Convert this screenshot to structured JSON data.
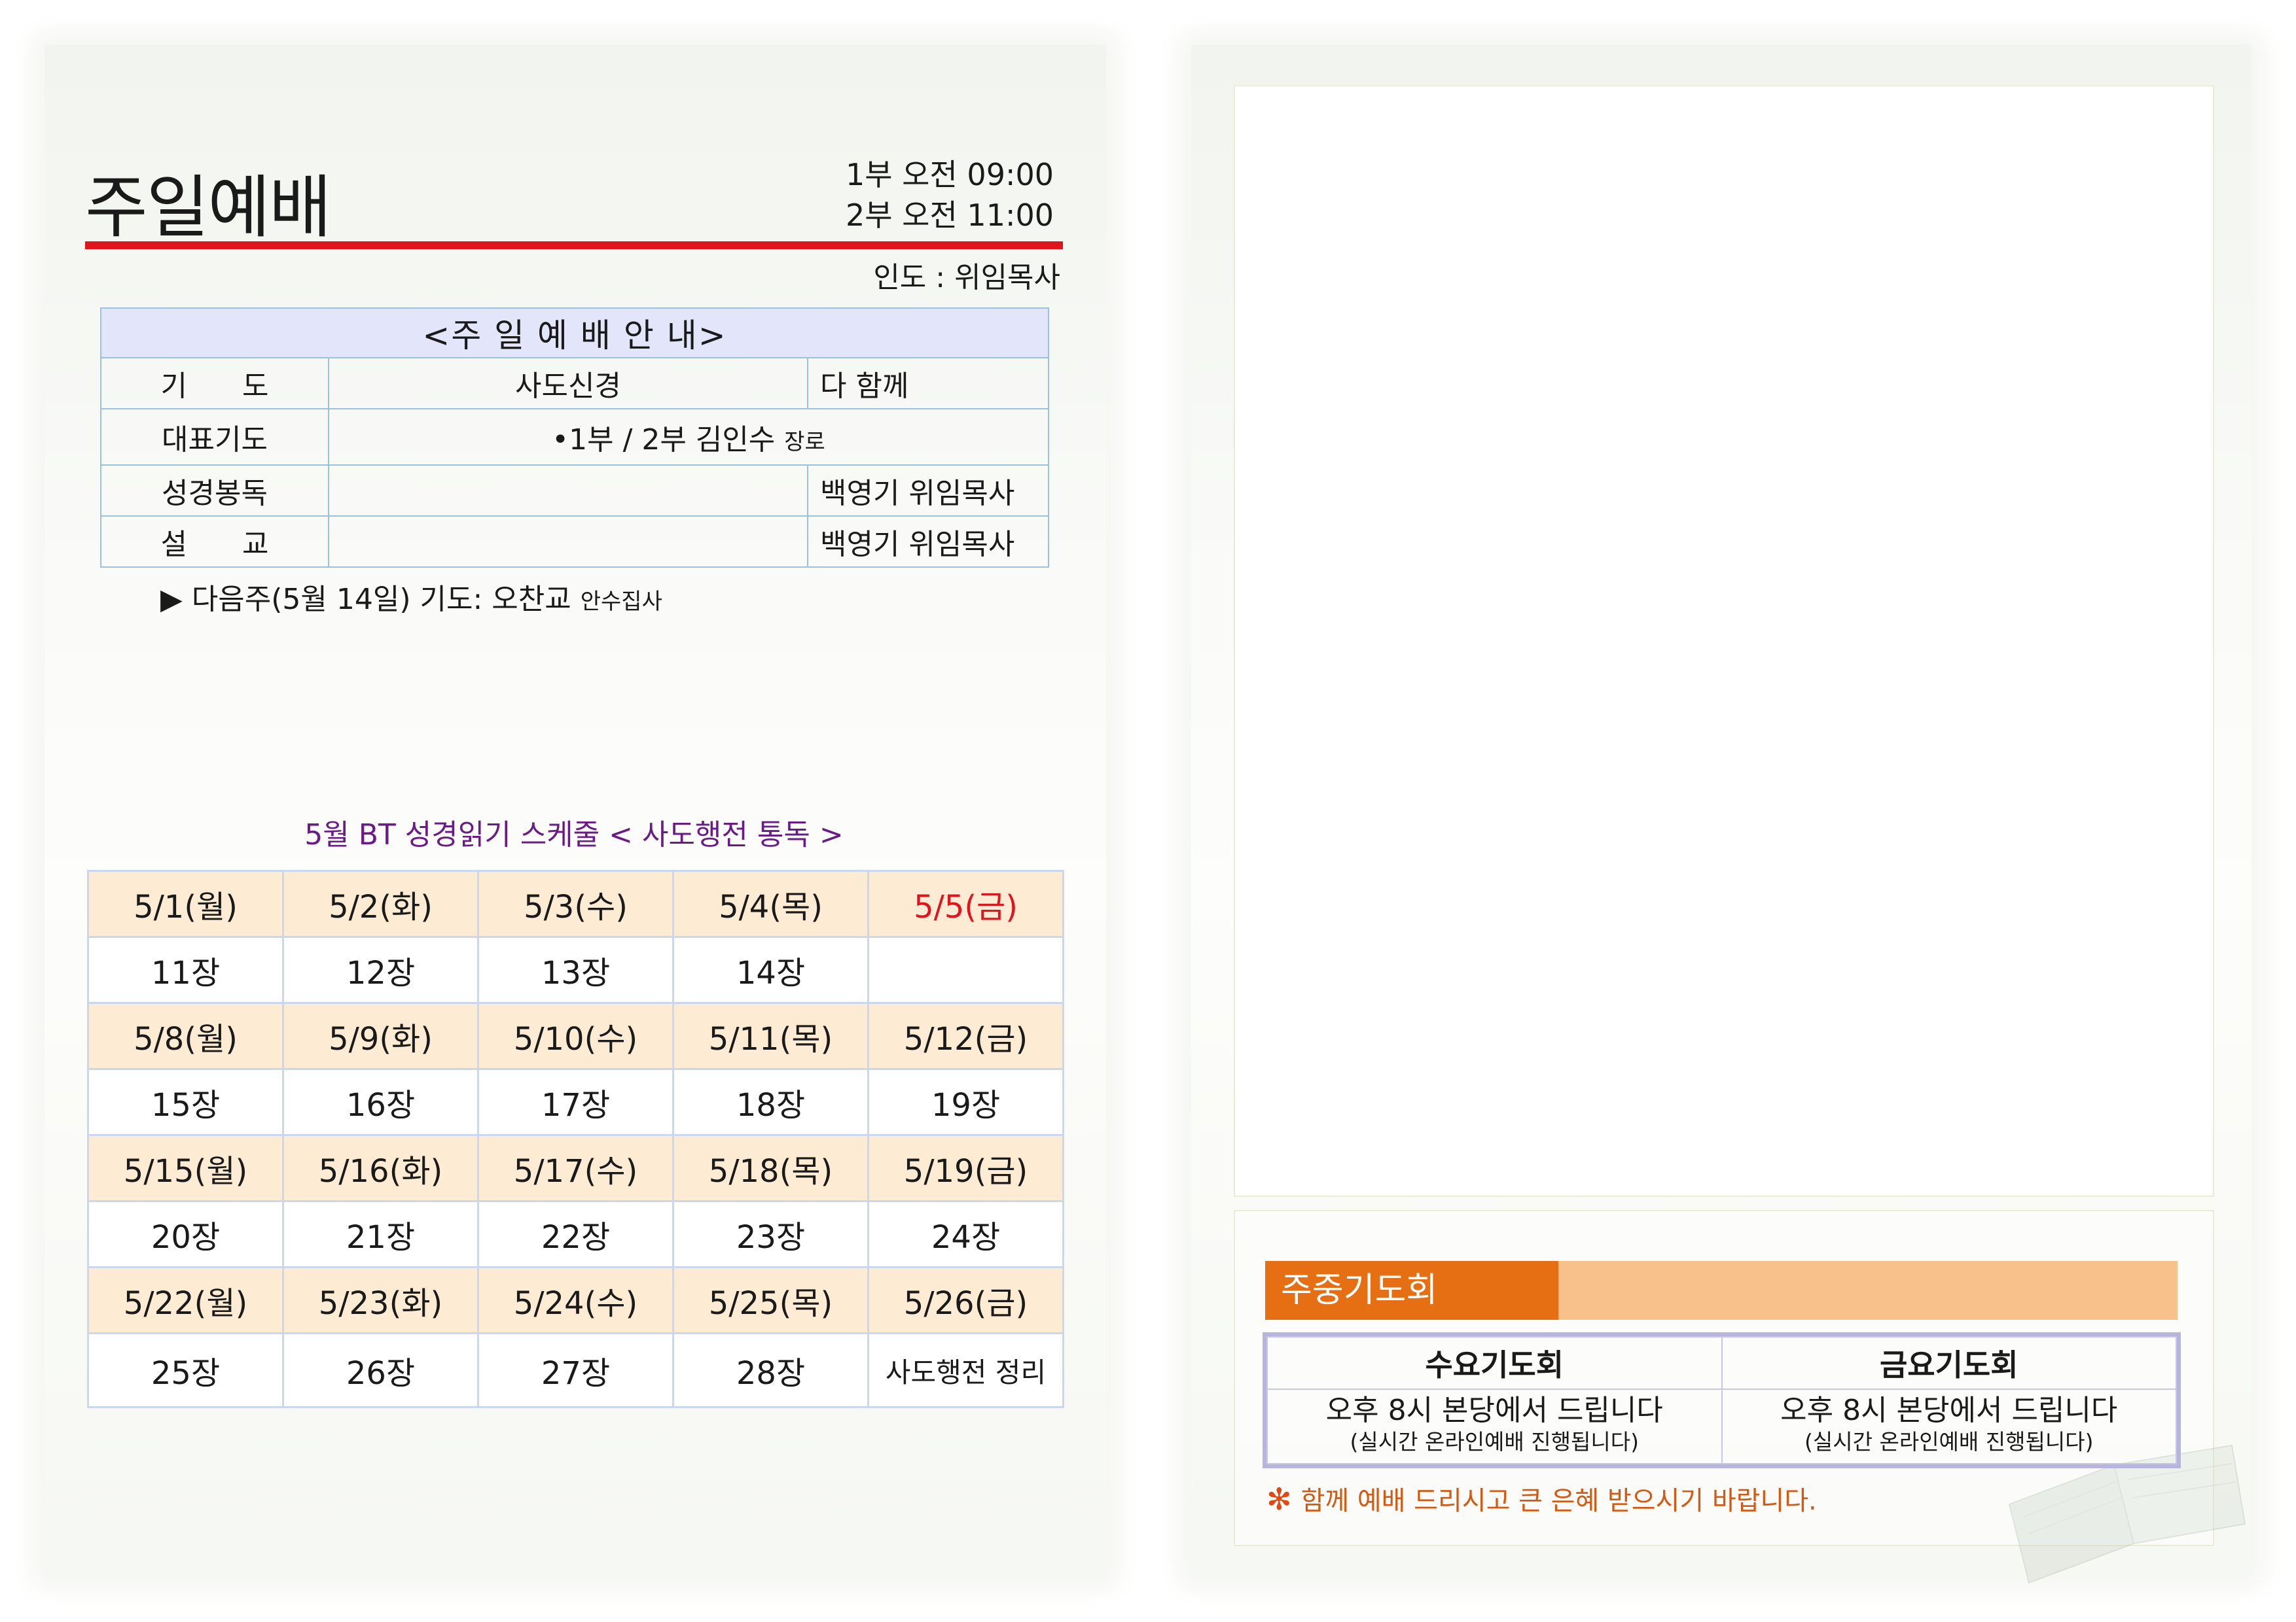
{
  "header": {
    "title": "주일예배",
    "service_1": "1부 오전 09:00",
    "service_2": "2부 오전 11:00",
    "leader": "인도 : 위임목사"
  },
  "order": {
    "heading": "<주 일 예 배 안 내>",
    "rows": [
      {
        "label": "기      도",
        "content": "사도신경",
        "content_small": "",
        "by": "다 함께"
      },
      {
        "label": "대표기도",
        "content": "•1부 / 2부  김인수",
        "content_small": "장로",
        "by": ""
      },
      {
        "label": "성경봉독",
        "content": "",
        "content_small": "",
        "by": "백영기 위임목사"
      },
      {
        "label": "설      교",
        "content": "",
        "content_small": "",
        "by": "백영기 위임목사"
      }
    ],
    "next_week": "▶ 다음주(5월 14일) 기도: 오찬교",
    "next_week_small": "안수집사"
  },
  "schedule": {
    "title": "5월 BT 성경읽기 스케줄 < 사도행전 통독 >",
    "weeks": [
      {
        "dates": [
          "5/1(월)",
          "5/2(화)",
          "5/3(수)",
          "5/4(목)",
          "5/5(금)"
        ],
        "chapters": [
          "11장",
          "12장",
          "13장",
          "14장",
          ""
        ]
      },
      {
        "dates": [
          "5/8(월)",
          "5/9(화)",
          "5/10(수)",
          "5/11(목)",
          "5/12(금)"
        ],
        "chapters": [
          "15장",
          "16장",
          "17장",
          "18장",
          "19장"
        ]
      },
      {
        "dates": [
          "5/15(월)",
          "5/16(화)",
          "5/17(수)",
          "5/18(목)",
          "5/19(금)"
        ],
        "chapters": [
          "20장",
          "21장",
          "22장",
          "23장",
          "24장"
        ]
      },
      {
        "dates": [
          "5/22(월)",
          "5/23(화)",
          "5/24(수)",
          "5/25(목)",
          "5/26(금)"
        ],
        "chapters": [
          "25장",
          "26장",
          "27장",
          "28장",
          "사도행전 정리"
        ]
      }
    ],
    "holiday_color": "#e0141d"
  },
  "prayer": {
    "bar_title": "주중기도회",
    "meetings": [
      {
        "name": "수요기도회",
        "time": "오후 8시 본당에서 드립니다",
        "note": "(실시간 온라인예배 진행됩니다)"
      },
      {
        "name": "금요기도회",
        "time": "오후 8시 본당에서 드립니다",
        "note": "(실시간 온라인예배 진행됩니다)"
      }
    ],
    "blessing_mark": "✻",
    "blessing": "함께 예배 드리시고 큰 은혜 받으시기 바랍니다."
  },
  "colors": {
    "accent_red": "#e0141d",
    "orange": "#e56f12",
    "light_orange": "#f8c08b",
    "purple": "#6a1b86"
  }
}
